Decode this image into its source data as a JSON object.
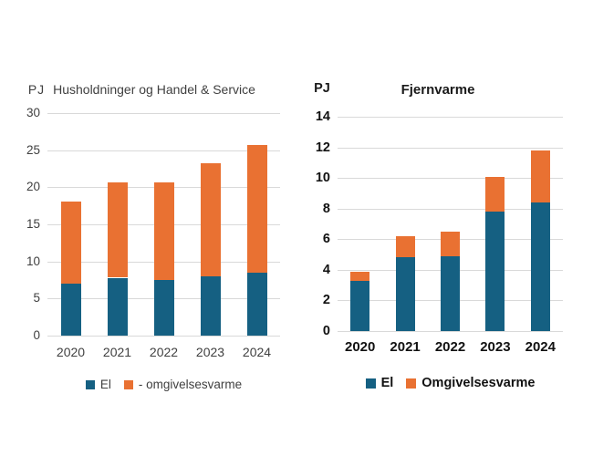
{
  "page": {
    "background": "#ffffff"
  },
  "colors": {
    "el": "#156082",
    "omgivelsesvarme": "#E97132",
    "gridline": "#D9D9D9",
    "left_chart_text": "#404040",
    "right_chart_text": "#111111"
  },
  "chart_data": [
    {
      "type": "bar",
      "stacked": true,
      "title": "Husholdninger og Handel & Service",
      "unit": "PJ",
      "categories": [
        "2020",
        "2021",
        "2022",
        "2023",
        "2024"
      ],
      "series": [
        {
          "name": "El",
          "color": "#156082",
          "values": [
            7.0,
            7.8,
            7.5,
            8.0,
            8.5
          ]
        },
        {
          "name": "- omgivelsesvarme",
          "color": "#E97132",
          "values": [
            11.1,
            12.9,
            13.2,
            15.3,
            17.2
          ]
        }
      ],
      "totals": [
        18.1,
        20.7,
        20.7,
        23.3,
        25.7
      ],
      "ylim": [
        0,
        30
      ],
      "ytick_step": 5,
      "grid": true,
      "legend_position": "bottom"
    },
    {
      "type": "bar",
      "stacked": true,
      "title": "Fjernvarme",
      "unit": "PJ",
      "categories": [
        "2020",
        "2021",
        "2022",
        "2023",
        "2024"
      ],
      "series": [
        {
          "name": "El",
          "color": "#156082",
          "values": [
            3.3,
            4.8,
            4.9,
            7.8,
            8.4
          ]
        },
        {
          "name": "Omgivelsesvarme",
          "color": "#E97132",
          "values": [
            0.6,
            1.4,
            1.6,
            2.3,
            3.4
          ]
        }
      ],
      "totals": [
        3.9,
        6.2,
        6.5,
        10.1,
        11.8
      ],
      "ylim": [
        0,
        14
      ],
      "ytick_step": 2,
      "grid": true,
      "legend_position": "bottom"
    }
  ]
}
